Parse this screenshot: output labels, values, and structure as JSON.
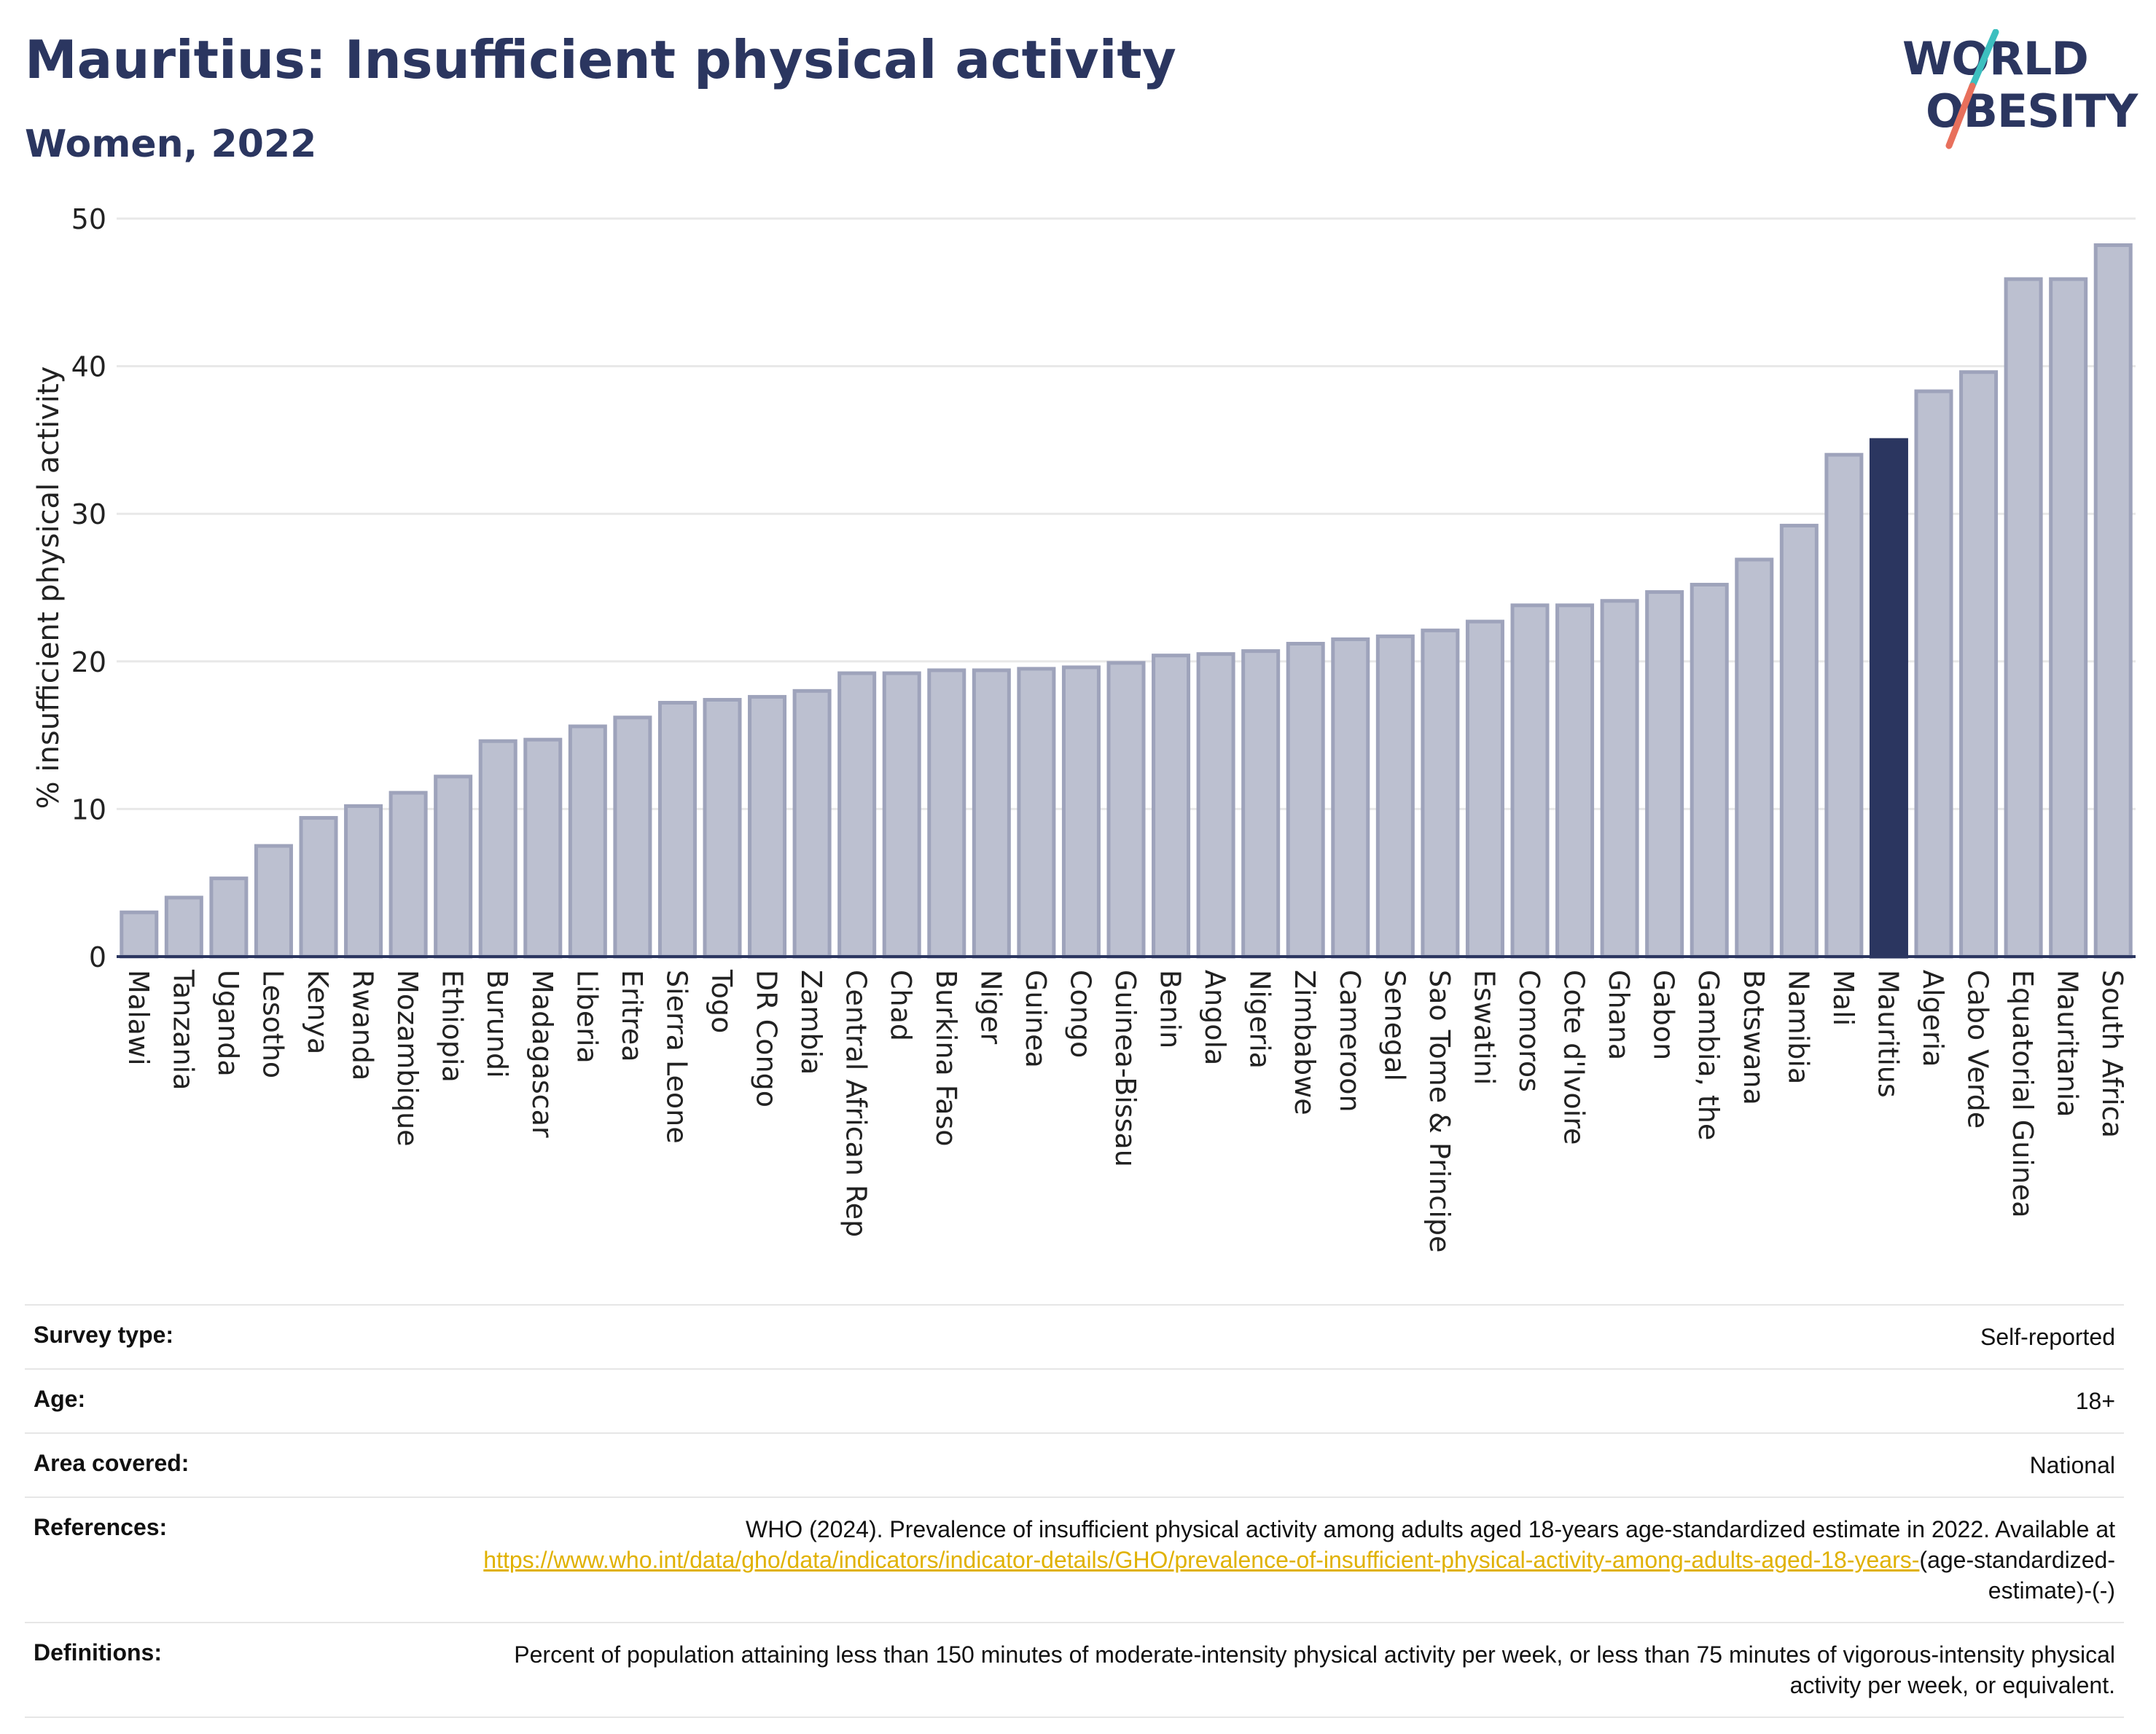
{
  "title": "Mauritius: Insufficient physical activity",
  "subtitle": "Women, 2022",
  "logo": {
    "line1": "WORLD",
    "line2": "OBESITY",
    "slash_colors": [
      "#3dbfbf",
      "#e8705c"
    ]
  },
  "colors": {
    "bar": "#bcc0d0",
    "bar_stroke": "#9ea3bb",
    "highlight": "#2b3660",
    "grid": "#e8e8e8",
    "axis": "#2b3660"
  },
  "chart_data": {
    "type": "bar",
    "ylabel": "% insufficient physical activity",
    "ylim": [
      0,
      50
    ],
    "yticks": [
      0,
      10,
      20,
      30,
      40,
      50
    ],
    "grid": true,
    "highlight": "Mauritius",
    "categories": [
      "Malawi",
      "Tanzania",
      "Uganda",
      "Lesotho",
      "Kenya",
      "Rwanda",
      "Mozambique",
      "Ethiopia",
      "Burundi",
      "Madagascar",
      "Liberia",
      "Eritrea",
      "Sierra Leone",
      "Togo",
      "DR Congo",
      "Zambia",
      "Central African Rep",
      "Chad",
      "Burkina Faso",
      "Niger",
      "Guinea",
      "Congo",
      "Guinea-Bissau",
      "Benin",
      "Angola",
      "Nigeria",
      "Zimbabwe",
      "Cameroon",
      "Senegal",
      "Sao Tome & Principe",
      "Eswatini",
      "Comoros",
      "Cote d'Ivoire",
      "Ghana",
      "Gabon",
      "Gambia, the",
      "Botswana",
      "Namibia",
      "Mali",
      "Mauritius",
      "Algeria",
      "Cabo Verde",
      "Equatorial Guinea",
      "Mauritania",
      "South Africa"
    ],
    "values": [
      3.0,
      4.0,
      5.3,
      7.5,
      9.4,
      10.2,
      11.1,
      12.2,
      14.6,
      14.7,
      15.6,
      16.2,
      17.2,
      17.4,
      17.6,
      18.0,
      19.2,
      19.2,
      19.4,
      19.4,
      19.5,
      19.6,
      19.9,
      20.4,
      20.5,
      20.7,
      21.2,
      21.5,
      21.7,
      22.1,
      22.7,
      23.8,
      23.8,
      24.1,
      24.7,
      25.2,
      26.9,
      29.2,
      34.0,
      35.0,
      38.3,
      39.6,
      45.9,
      45.9,
      48.2
    ]
  },
  "meta": {
    "survey_label": "Survey type:",
    "survey_value": "Self-reported",
    "age_label": "Age:",
    "age_value": "18+",
    "area_label": "Area covered:",
    "area_value": "National",
    "ref_label": "References:",
    "ref_text": "WHO (2024). Prevalence of insufficient physical activity among adults aged 18-years age-standardized estimate in 2022. Available at",
    "ref_link": "https://www.who.int/data/gho/data/indicators/indicator-details/GHO/prevalence-of-insufficient-physical-activity-among-adults-aged-18-years-",
    "ref_suffix": "(age-standardized-estimate)-(-)",
    "def_label": "Definitions:",
    "def_text": "Percent of population attaining less than 150 minutes of moderate-intensity physical activity per week, or less than 75 minutes of vigorous-intensity physical activity per week, or equivalent."
  }
}
